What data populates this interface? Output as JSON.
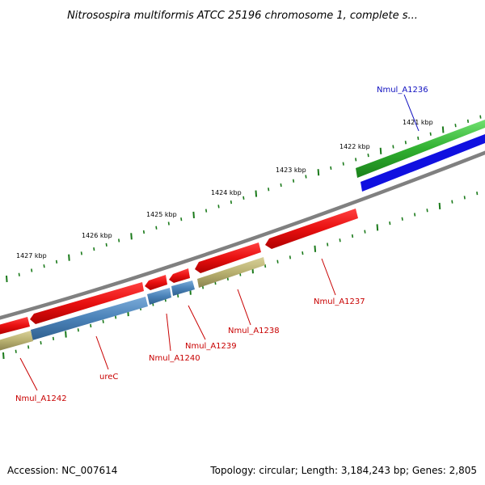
{
  "title": "Nitrosospira multiformis ATCC 25196 chromosome 1, complete s...",
  "footer": {
    "accession": "Accession: NC_007614",
    "summary": "Topology: circular; Length: 3,184,243 bp; Genes: 2,805"
  },
  "ticks": [
    "1421 kbp",
    "1422 kbp",
    "1423 kbp",
    "1424 kbp",
    "1425 kbp",
    "1426 kbp",
    "1427 kbp"
  ],
  "gene_labels": [
    "Nmul_A1236",
    "Nmul_A1237",
    "Nmul_A1238",
    "Nmul_A1239",
    "Nmul_A1240",
    "ureC",
    "Nmul_A1242"
  ],
  "colors": {
    "backbone": "#808080",
    "cds_red": "#e81010",
    "cds_blue": "#4a82b8",
    "gene_olive": "#b8b070",
    "gene_green": "#30b030",
    "cds_blue_dark": "#1010e0",
    "tick_green": "#1a7a1a",
    "label_red": "#c80000",
    "label_blue": "#1010c0"
  }
}
